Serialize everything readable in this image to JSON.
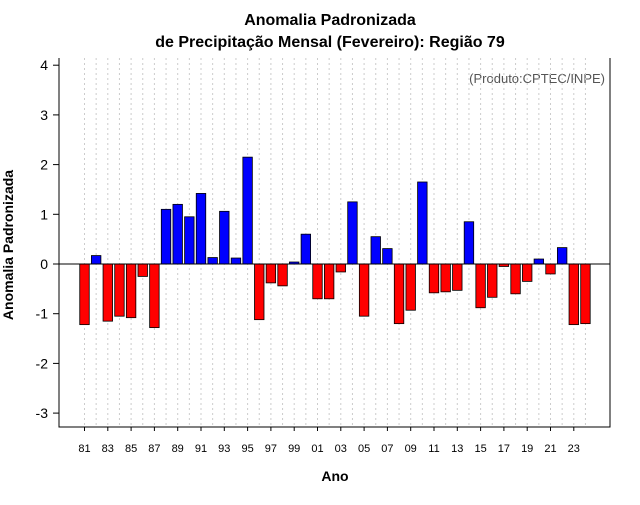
{
  "title_line1": "Anomalia Padronizada",
  "title_line2": "de Precipitação Mensal (Fevereiro): Região 79",
  "source": "(Produto:CPTEC/INPE)",
  "colors": {
    "positive": "#0000ff",
    "negative": "#ff0000",
    "outline": "#000000",
    "grid": "#cccccc"
  },
  "chart_data": {
    "type": "bar",
    "xlabel": "Ano",
    "ylabel": "Anomalia Padronizada",
    "ylim": [
      -3,
      4
    ],
    "yticks": [
      -3,
      -2,
      -1,
      0,
      1,
      2,
      3,
      4
    ],
    "grid": true,
    "categories": [
      "81",
      "82",
      "83",
      "84",
      "85",
      "86",
      "87",
      "88",
      "89",
      "90",
      "91",
      "92",
      "93",
      "94",
      "95",
      "96",
      "97",
      "98",
      "99",
      "00",
      "01",
      "02",
      "03",
      "04",
      "05",
      "06",
      "07",
      "08",
      "09",
      "10",
      "11",
      "12",
      "13",
      "14",
      "15",
      "16",
      "17",
      "18",
      "19",
      "20",
      "21",
      "22",
      "23",
      "24"
    ],
    "tick_labels": [
      "81",
      "83",
      "85",
      "87",
      "89",
      "91",
      "93",
      "95",
      "97",
      "99",
      "01",
      "03",
      "05",
      "07",
      "09",
      "11",
      "13",
      "15",
      "17",
      "19",
      "21",
      "23"
    ],
    "values": [
      -1.22,
      0.17,
      -1.15,
      -1.05,
      -1.08,
      -0.25,
      -1.28,
      1.1,
      1.2,
      0.95,
      1.42,
      0.13,
      1.06,
      0.12,
      2.15,
      -1.12,
      -0.38,
      -0.44,
      0.04,
      0.6,
      -0.7,
      -0.7,
      -0.16,
      1.25,
      -1.05,
      0.55,
      0.31,
      -1.2,
      -0.93,
      1.65,
      -0.58,
      -0.56,
      -0.53,
      0.85,
      -0.88,
      -0.67,
      -0.05,
      -0.6,
      -0.35,
      0.1,
      -0.2,
      0.33,
      -1.22,
      -1.2
    ]
  }
}
